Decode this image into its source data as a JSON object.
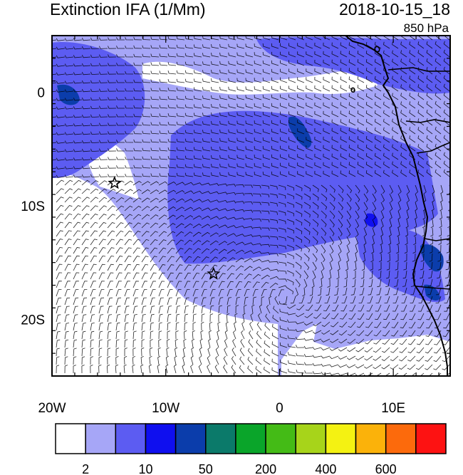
{
  "header": {
    "title": "Extinction IFA (1/Mm)",
    "datetime": "2018-10-15_18",
    "level": "850 hPa"
  },
  "map": {
    "lon_ticks": [
      {
        "value": -20,
        "label": "20W"
      },
      {
        "value": -10,
        "label": "10W"
      },
      {
        "value": 0,
        "label": "0"
      },
      {
        "value": 10,
        "label": "10E"
      }
    ],
    "lat_ticks": [
      {
        "value": 0,
        "label": "0"
      },
      {
        "value": -10,
        "label": "10S"
      },
      {
        "value": -20,
        "label": "20S"
      }
    ],
    "lon_range": [
      -20,
      15
    ],
    "lat_range": [
      -25,
      5
    ],
    "markers": [
      {
        "name": "star-marker-1",
        "lon": -14.5,
        "lat": -8.0
      },
      {
        "name": "star-marker-2",
        "lon": -5.8,
        "lat": -16.0
      }
    ]
  },
  "colorbar": {
    "colors": [
      "#ffffff",
      "#a6a6f7",
      "#5c5cf2",
      "#0f0fef",
      "#0b3dab",
      "#0b7a6a",
      "#0aa52a",
      "#44bb16",
      "#a7d41a",
      "#f4f212",
      "#fbb20a",
      "#fc6a0c",
      "#fd1212"
    ],
    "labels": [
      {
        "text": "2",
        "boundary": 1
      },
      {
        "text": "10",
        "boundary": 3
      },
      {
        "text": "50",
        "boundary": 5
      },
      {
        "text": "200",
        "boundary": 7
      },
      {
        "text": "400",
        "boundary": 9
      },
      {
        "text": "600",
        "boundary": 11
      }
    ]
  }
}
